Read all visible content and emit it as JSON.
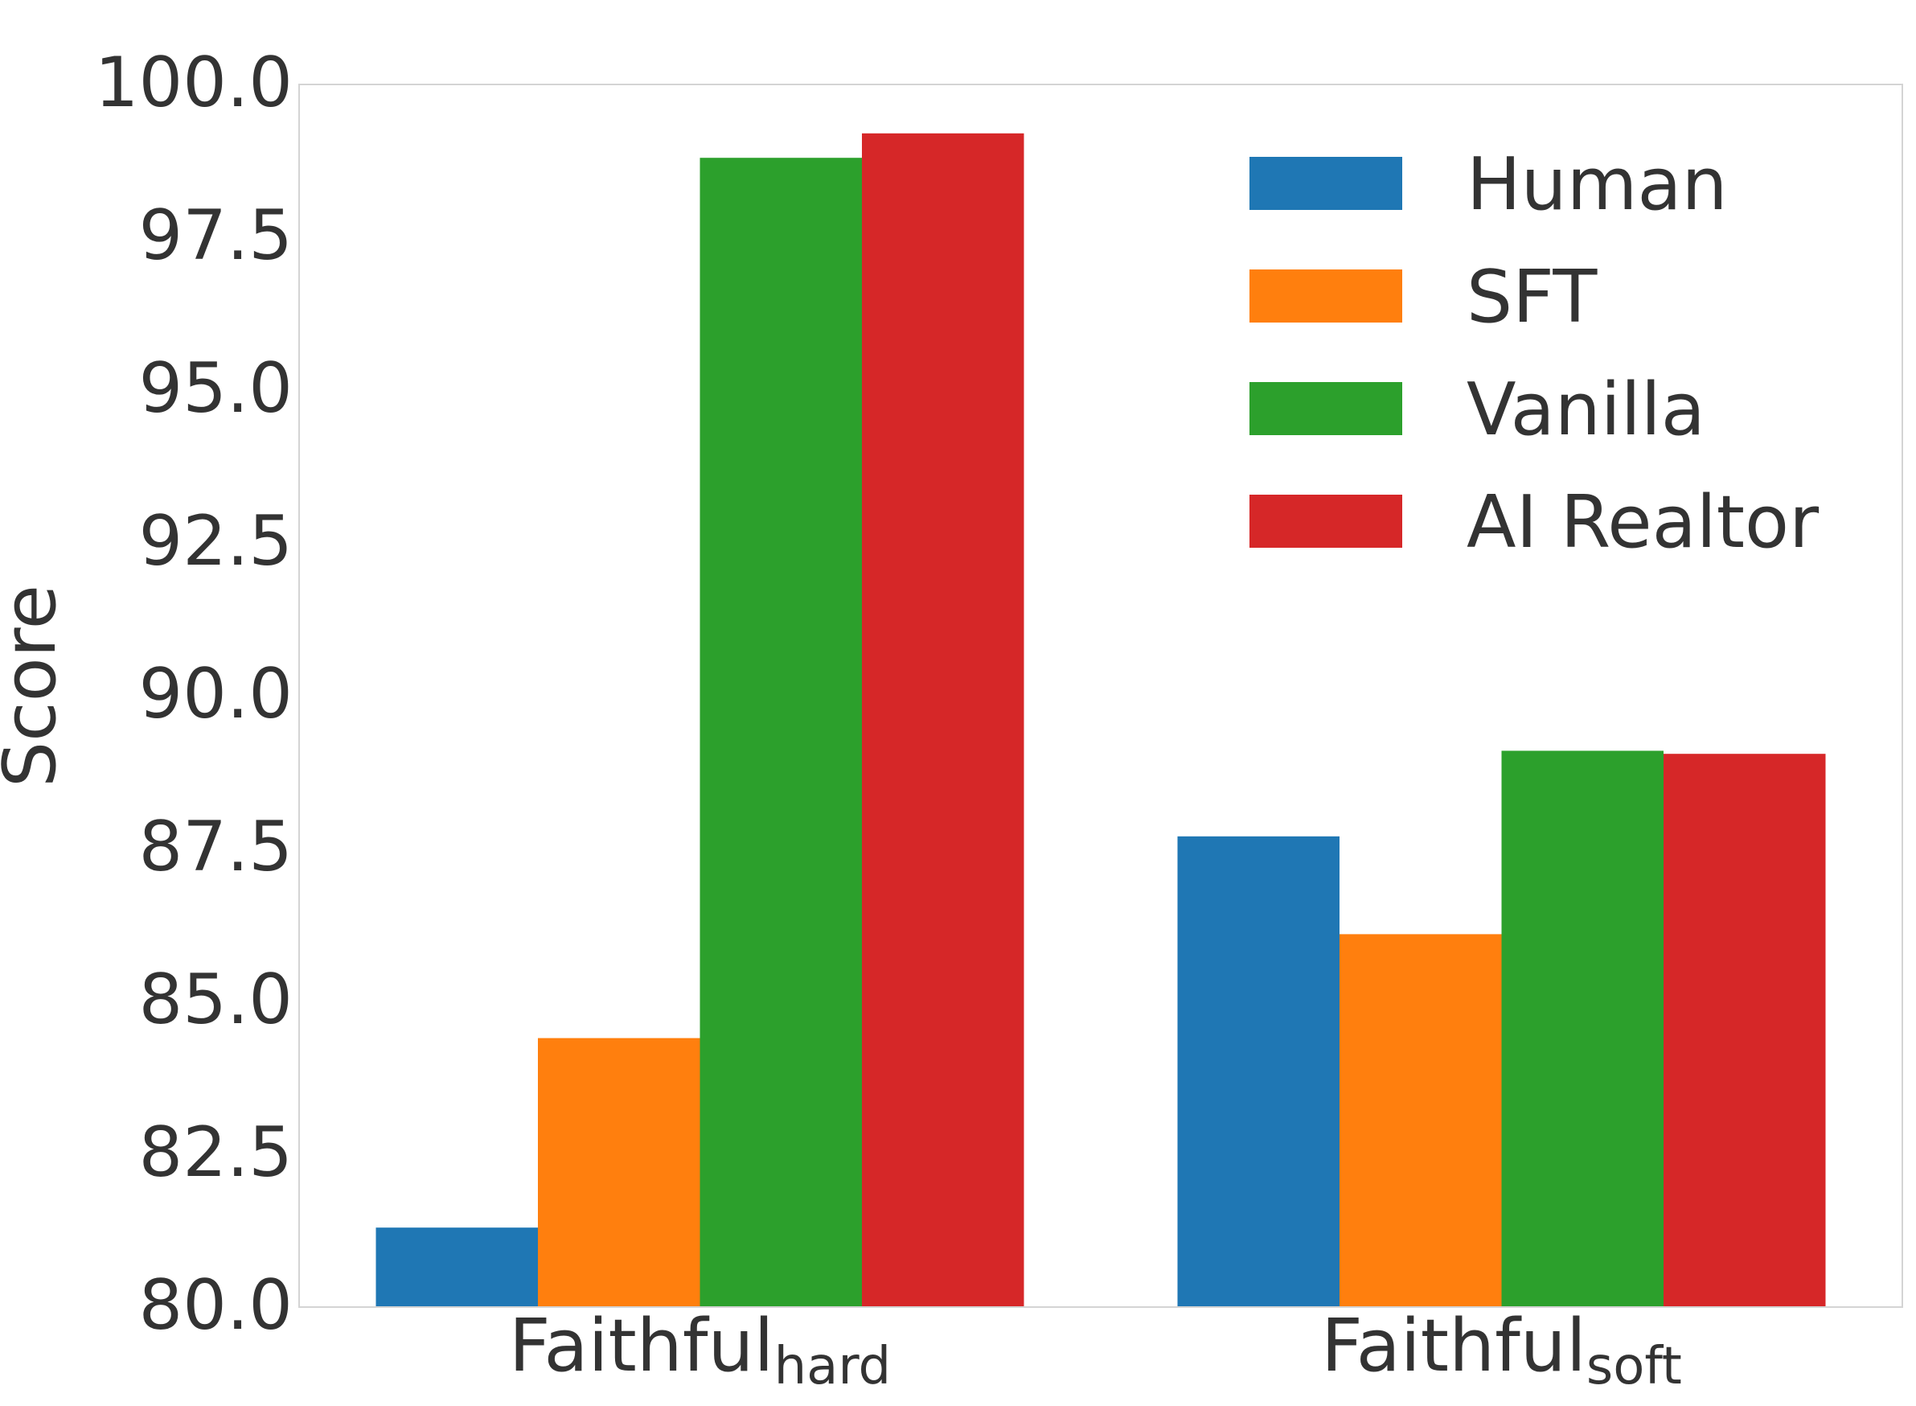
{
  "chart_data": {
    "type": "bar",
    "categories": [
      {
        "base": "Faithful",
        "sub": "hard"
      },
      {
        "base": "Faithful",
        "sub": "soft"
      }
    ],
    "series": [
      {
        "name": "Human",
        "color": "#1f77b4",
        "values": [
          81.3,
          87.7
        ]
      },
      {
        "name": "SFT",
        "color": "#ff7f0e",
        "values": [
          84.4,
          86.1
        ]
      },
      {
        "name": "Vanilla",
        "color": "#2ca02c",
        "values": [
          98.8,
          89.1
        ]
      },
      {
        "name": "AI Realtor",
        "color": "#d62728",
        "values": [
          99.2,
          89.05
        ]
      }
    ],
    "title": "",
    "xlabel": "",
    "ylabel": "Score",
    "ylim": [
      80.0,
      100.0
    ],
    "yticks": [
      "80.0",
      "82.5",
      "85.0",
      "87.5",
      "90.0",
      "92.5",
      "95.0",
      "97.5",
      "100.0"
    ],
    "grid": false,
    "legend_position": "top-right"
  }
}
